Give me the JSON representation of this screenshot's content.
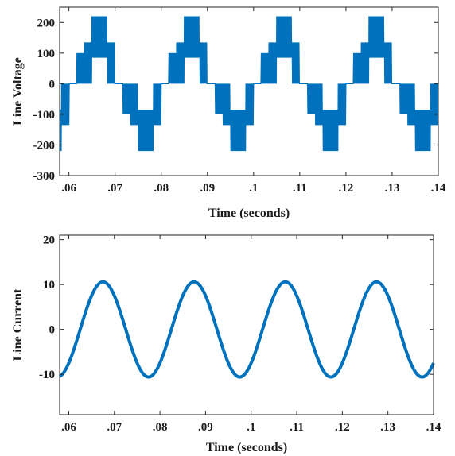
{
  "chart_data": [
    {
      "type": "line",
      "title": "",
      "xlabel": "Time (seconds)",
      "ylabel": "Line Voltage",
      "xlim": [
        0.058,
        0.14
      ],
      "ylim": [
        -300,
        250
      ],
      "xticks": [
        0.06,
        0.07,
        0.08,
        0.09,
        0.1,
        0.11,
        0.12,
        0.13,
        0.14
      ],
      "yticks": [
        -300,
        -200,
        -100,
        0,
        100,
        200
      ],
      "grid": false,
      "series": [
        {
          "color": "#0072BD",
          "style": "pwm-band",
          "fundamental_hz": 50,
          "carrier_hz": 2000,
          "levels": [
            {
              "from_phase_deg": 0,
              "to_phase_deg": 30,
              "low": 0,
              "high": 0
            },
            {
              "from_phase_deg": 30,
              "to_phase_deg": 60,
              "low": 0,
              "high": 100
            },
            {
              "from_phase_deg": 60,
              "to_phase_deg": 90,
              "low": 0,
              "high": 135
            },
            {
              "from_phase_deg": 90,
              "to_phase_deg": 150,
              "low": 85,
              "high": 220
            },
            {
              "from_phase_deg": 150,
              "to_phase_deg": 180,
              "low": 0,
              "high": 135
            }
          ],
          "x_start": 0.058,
          "x_end": 0.14
        }
      ]
    },
    {
      "type": "line",
      "title": "",
      "xlabel": "Time (seconds)",
      "ylabel": "Line Current",
      "xlim": [
        0.058,
        0.14
      ],
      "ylim": [
        -19,
        21
      ],
      "xticks": [
        0.06,
        0.07,
        0.08,
        0.09,
        0.1,
        0.11,
        0.12,
        0.13,
        0.14
      ],
      "yticks": [
        -10,
        0,
        10,
        20
      ],
      "grid": false,
      "series": [
        {
          "color": "#0072BD",
          "style": "sine",
          "amplitude": 10.6,
          "frequency_hz": 50,
          "peak_times": [
            0.0675,
            0.0875,
            0.1075,
            0.1275
          ],
          "x_start": 0.058,
          "x_end": 0.14
        }
      ]
    }
  ]
}
